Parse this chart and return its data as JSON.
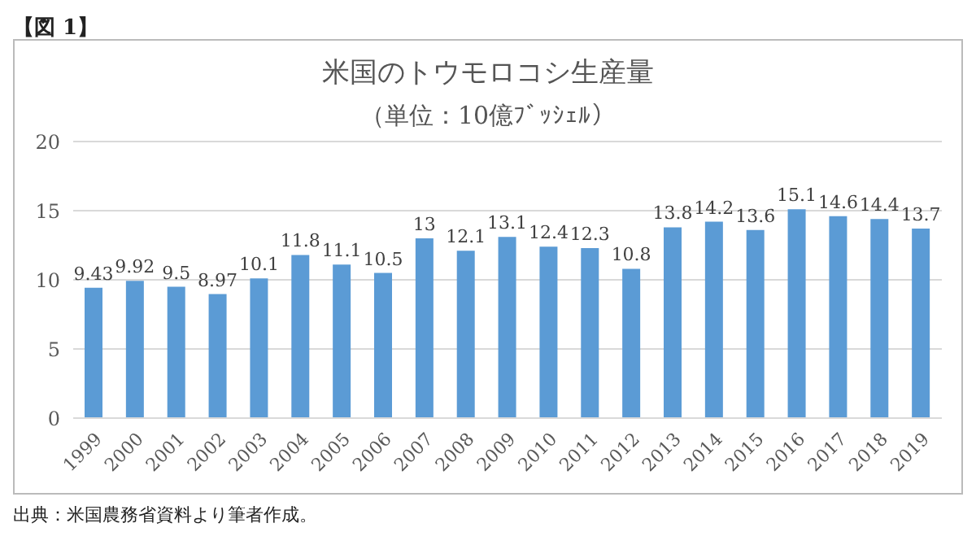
{
  "chart_data": {
    "type": "bar",
    "title": "米国のトウモロコシ生産量",
    "subtitle": "（単位：10億ﾌﾞｯｼｪﾙ）",
    "annotations": [
      "【図 1】",
      "出典：米国農務省資料より筆者作成。"
    ],
    "categories": [
      "1999",
      "2000",
      "2001",
      "2002",
      "2003",
      "2004",
      "2005",
      "2006",
      "2007",
      "2008",
      "2009",
      "2010",
      "2011",
      "2012",
      "2013",
      "2014",
      "2015",
      "2016",
      "2017",
      "2018",
      "2019"
    ],
    "values": [
      9.43,
      9.92,
      9.5,
      8.97,
      10.1,
      11.8,
      11.1,
      10.5,
      13,
      12.1,
      13.1,
      12.4,
      12.3,
      10.8,
      13.8,
      14.2,
      13.6,
      15.1,
      14.6,
      14.4,
      13.7
    ],
    "color": "#5b9bd5",
    "ylim": [
      0,
      20
    ],
    "yticks": [
      0,
      5,
      10,
      15,
      20
    ],
    "grid": "y",
    "data_labels": true,
    "legend": false
  }
}
